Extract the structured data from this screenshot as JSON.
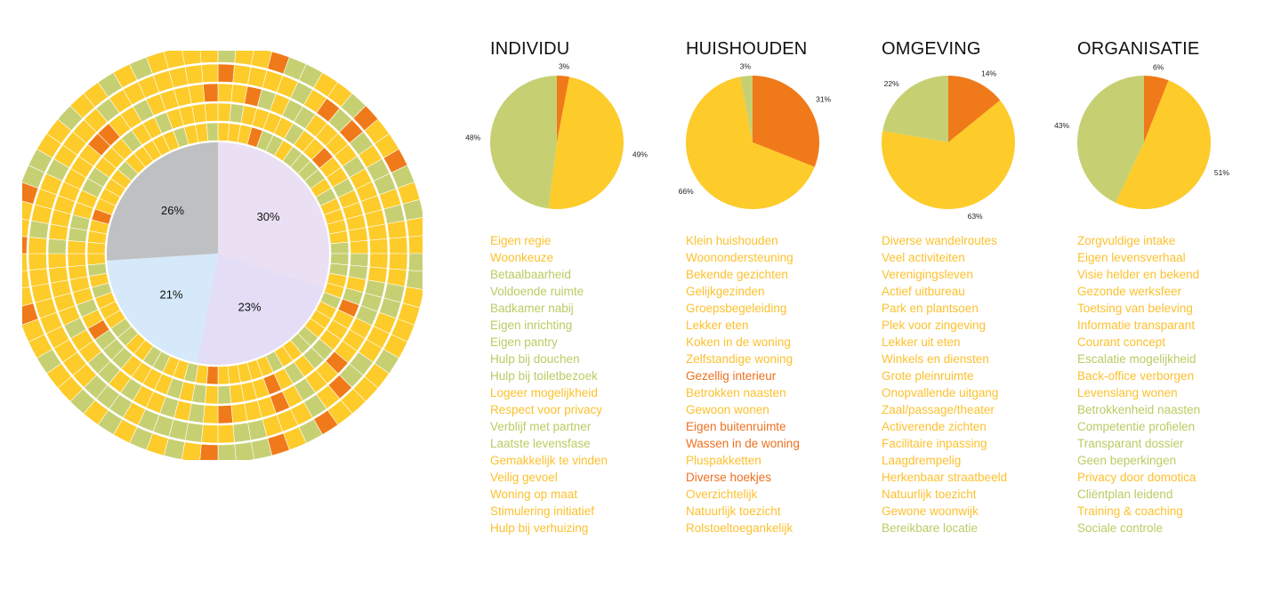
{
  "colors": {
    "orange": "#F07A19",
    "yellow": "#FDCB2A",
    "green": "#C6D073",
    "text_orange": "#EE7020",
    "text_yellow": "#FCC12F",
    "text_green": "#BBCB63",
    "inner_gray": "#BFC0C2",
    "inner_lilac": "#EBE0F3",
    "inner_lavender": "#E3DDF6",
    "inner_blue": "#D5E9FA"
  },
  "chart_data": [
    {
      "type": "pie",
      "name": "overview-wheel",
      "inner": {
        "slices": [
          {
            "label": "30%",
            "value": 30,
            "color": "inner_lilac"
          },
          {
            "label": "23%",
            "value": 23,
            "color": "inner_lavender"
          },
          {
            "label": "21%",
            "value": 21,
            "color": "inner_blue"
          },
          {
            "label": "26%",
            "value": 26,
            "color": "inner_gray"
          }
        ]
      },
      "rings": 5,
      "segments_per_ring": 72,
      "ring_palette": [
        "yellow",
        "green",
        "orange"
      ],
      "ring_weights": [
        0.66,
        0.26,
        0.08
      ]
    },
    {
      "type": "pie",
      "title": "INDIVIDU",
      "slices": [
        {
          "label": "3%",
          "value": 3,
          "color": "orange"
        },
        {
          "label": "49%",
          "value": 49,
          "color": "yellow"
        },
        {
          "label": "48%",
          "value": 48,
          "color": "green"
        }
      ],
      "items": [
        {
          "text": "Eigen regie",
          "color": "text_yellow"
        },
        {
          "text": "Woonkeuze",
          "color": "text_yellow"
        },
        {
          "text": "Betaalbaarheid",
          "color": "text_green"
        },
        {
          "text": "Voldoende ruimte",
          "color": "text_green"
        },
        {
          "text": "Badkamer nabij",
          "color": "text_green"
        },
        {
          "text": "Eigen inrichting",
          "color": "text_green"
        },
        {
          "text": "Eigen pantry",
          "color": "text_green"
        },
        {
          "text": "Hulp bij douchen",
          "color": "text_green"
        },
        {
          "text": "Hulp bij toiletbezoek",
          "color": "text_green"
        },
        {
          "text": "Logeer mogelijkheid",
          "color": "text_yellow"
        },
        {
          "text": "Respect voor privacy",
          "color": "text_yellow"
        },
        {
          "text": "Verblijf met partner",
          "color": "text_green"
        },
        {
          "text": "Laatste levensfase",
          "color": "text_green"
        },
        {
          "text": "Gemakkelijk te vinden",
          "color": "text_yellow"
        },
        {
          "text": "Veilig gevoel",
          "color": "text_yellow"
        },
        {
          "text": "Woning op maat",
          "color": "text_yellow"
        },
        {
          "text": "Stimulering initiatief",
          "color": "text_yellow"
        },
        {
          "text": "Hulp bij verhuizing",
          "color": "text_yellow"
        }
      ]
    },
    {
      "type": "pie",
      "title": "HUISHOUDEN",
      "slices": [
        {
          "label": "31%",
          "value": 31,
          "color": "orange"
        },
        {
          "label": "66%",
          "value": 66,
          "color": "yellow"
        },
        {
          "label": "3%",
          "value": 3,
          "color": "green"
        }
      ],
      "items": [
        {
          "text": "Klein huishouden",
          "color": "text_yellow"
        },
        {
          "text": "Woonondersteuning",
          "color": "text_yellow"
        },
        {
          "text": "Bekende gezichten",
          "color": "text_yellow"
        },
        {
          "text": "Gelijkgezinden",
          "color": "text_yellow"
        },
        {
          "text": "Groepsbegeleiding",
          "color": "text_yellow"
        },
        {
          "text": "Lekker eten",
          "color": "text_yellow"
        },
        {
          "text": "Koken in de woning",
          "color": "text_yellow"
        },
        {
          "text": "Zelfstandige woning",
          "color": "text_yellow"
        },
        {
          "text": "Gezellig interieur",
          "color": "text_orange"
        },
        {
          "text": "Betrokken naasten",
          "color": "text_yellow"
        },
        {
          "text": "Gewoon wonen",
          "color": "text_yellow"
        },
        {
          "text": "Eigen buitenruimte",
          "color": "text_orange"
        },
        {
          "text": "Wassen in de woning",
          "color": "text_orange"
        },
        {
          "text": "Pluspakketten",
          "color": "text_yellow"
        },
        {
          "text": "Diverse hoekjes",
          "color": "text_orange"
        },
        {
          "text": "Overzichtelijk",
          "color": "text_yellow"
        },
        {
          "text": "Natuurlijk toezicht",
          "color": "text_yellow"
        },
        {
          "text": "Rolstoeltoegankelijk",
          "color": "text_yellow"
        }
      ]
    },
    {
      "type": "pie",
      "title": "OMGEVING",
      "slices": [
        {
          "label": "14%",
          "value": 14,
          "color": "orange"
        },
        {
          "label": "63%",
          "value": 63,
          "color": "yellow"
        },
        {
          "label": "22%",
          "value": 22,
          "color": "green"
        }
      ],
      "items": [
        {
          "text": "Diverse wandelroutes",
          "color": "text_yellow"
        },
        {
          "text": "Veel activiteiten",
          "color": "text_yellow"
        },
        {
          "text": "Verenigingsleven",
          "color": "text_yellow"
        },
        {
          "text": "Actief uitbureau",
          "color": "text_yellow"
        },
        {
          "text": "Park en plantsoen",
          "color": "text_yellow"
        },
        {
          "text": "Plek voor zingeving",
          "color": "text_yellow"
        },
        {
          "text": "Lekker uit eten",
          "color": "text_yellow"
        },
        {
          "text": "Winkels en diensten",
          "color": "text_yellow"
        },
        {
          "text": "Grote pleinruimte",
          "color": "text_yellow"
        },
        {
          "text": "Onopvallende uitgang",
          "color": "text_yellow"
        },
        {
          "text": "Zaal/passage/theater",
          "color": "text_yellow"
        },
        {
          "text": "Activerende zichten",
          "color": "text_yellow"
        },
        {
          "text": "Facilitaire inpassing",
          "color": "text_yellow"
        },
        {
          "text": "Laagdrempelig",
          "color": "text_yellow"
        },
        {
          "text": "Herkenbaar straatbeeld",
          "color": "text_yellow"
        },
        {
          "text": "Natuurlijk toezicht",
          "color": "text_yellow"
        },
        {
          "text": "Gewone woonwijk",
          "color": "text_yellow"
        },
        {
          "text": "Bereikbare locatie",
          "color": "text_green"
        }
      ]
    },
    {
      "type": "pie",
      "title": "ORGANISATIE",
      "slices": [
        {
          "label": "6%",
          "value": 6,
          "color": "orange"
        },
        {
          "label": "51%",
          "value": 51,
          "color": "yellow"
        },
        {
          "label": "43%",
          "value": 43,
          "color": "green"
        }
      ],
      "items": [
        {
          "text": "Zorgvuldige intake",
          "color": "text_yellow"
        },
        {
          "text": "Eigen levensverhaal",
          "color": "text_yellow"
        },
        {
          "text": "Visie helder en bekend",
          "color": "text_yellow"
        },
        {
          "text": "Gezonde werksfeer",
          "color": "text_yellow"
        },
        {
          "text": "Toetsing van beleving",
          "color": "text_yellow"
        },
        {
          "text": "Informatie transparant",
          "color": "text_yellow"
        },
        {
          "text": "Courant concept",
          "color": "text_yellow"
        },
        {
          "text": "Escalatie mogelijkheid",
          "color": "text_green"
        },
        {
          "text": "Back-office verborgen",
          "color": "text_yellow"
        },
        {
          "text": "Levenslang wonen",
          "color": "text_yellow"
        },
        {
          "text": "Betrokkenheid naasten",
          "color": "text_green"
        },
        {
          "text": "Competentie profielen",
          "color": "text_green"
        },
        {
          "text": "Transparant dossier",
          "color": "text_green"
        },
        {
          "text": "Geen beperkingen",
          "color": "text_green"
        },
        {
          "text": "Privacy door domotica",
          "color": "text_yellow"
        },
        {
          "text": "Cliëntplan leidend",
          "color": "text_green"
        },
        {
          "text": "Training & coaching",
          "color": "text_yellow"
        },
        {
          "text": "Sociale controle",
          "color": "text_green"
        }
      ]
    }
  ]
}
